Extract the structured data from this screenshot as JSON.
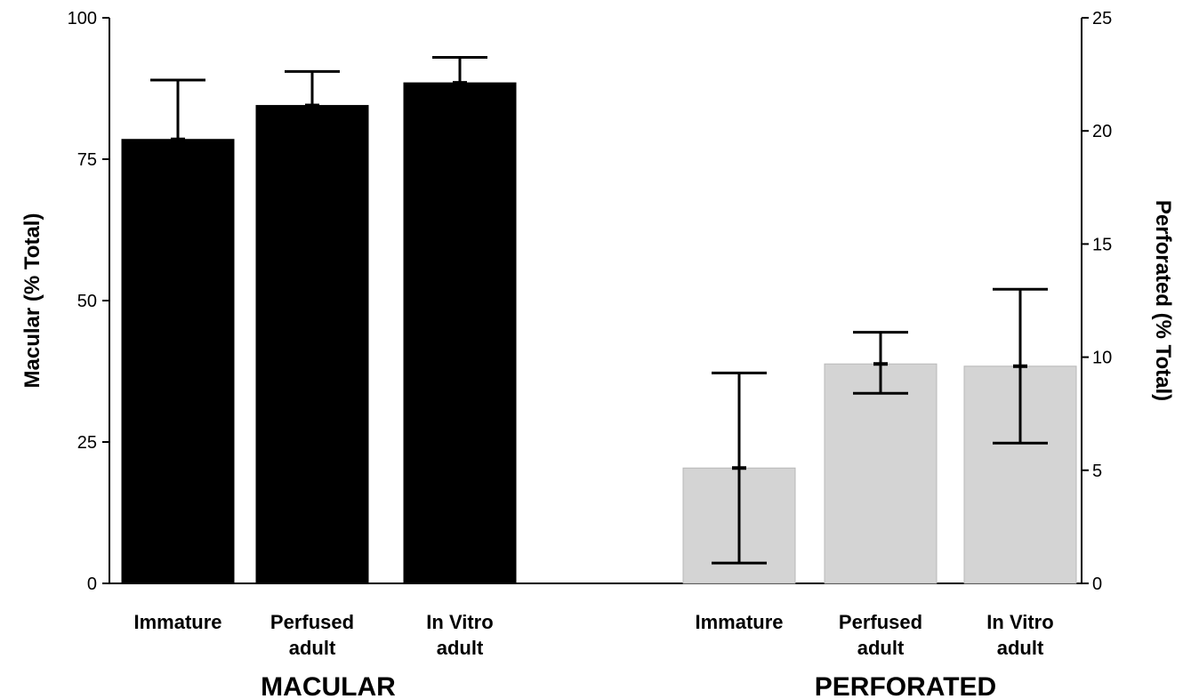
{
  "chart_data": {
    "type": "bar",
    "groups": [
      {
        "name": "MACULAR",
        "axis": "left",
        "categories": [
          [
            "Immature"
          ],
          [
            "Perfused",
            "adult"
          ],
          [
            "In Vitro",
            "adult"
          ]
        ],
        "values": [
          78.5,
          84.5,
          88.5
        ],
        "error_upper": [
          89,
          90.5,
          93
        ],
        "error_lower": [
          null,
          null,
          null
        ],
        "color": "#000000"
      },
      {
        "name": "PERFORATED",
        "axis": "right",
        "categories": [
          [
            "Immature"
          ],
          [
            "Perfused",
            "adult"
          ],
          [
            "In Vitro",
            "adult"
          ]
        ],
        "values": [
          5.1,
          9.7,
          9.6
        ],
        "error_upper": [
          9.3,
          11.1,
          13
        ],
        "error_lower": [
          0.9,
          8.4,
          6.2
        ],
        "color": "#d4d4d4"
      }
    ],
    "y_left": {
      "label": "Macular (% Total)",
      "ylim": [
        0,
        100
      ],
      "ticks": [
        "0",
        "25",
        "50",
        "75",
        "100"
      ]
    },
    "y_right": {
      "label": "Perforated (% Total)",
      "ylim": [
        0,
        25
      ],
      "ticks": [
        "0",
        "5",
        "10",
        "15",
        "20",
        "25"
      ]
    },
    "grid": false,
    "legend": "none"
  }
}
